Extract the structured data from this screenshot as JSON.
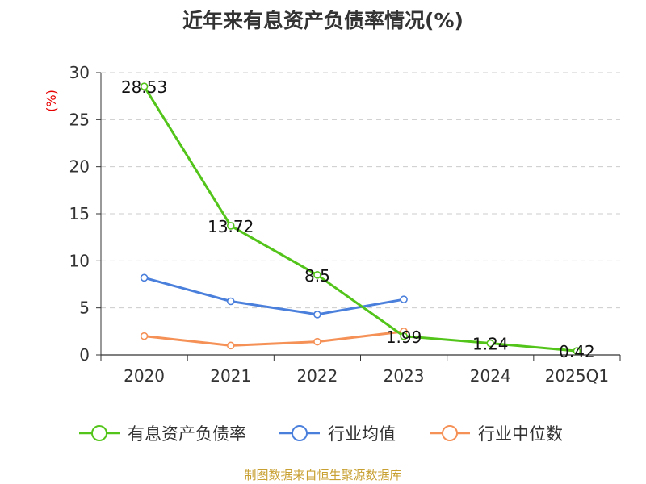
{
  "colors": {
    "series": [
      "#52c41a",
      "#4a7fdc",
      "#f59157"
    ],
    "grid": "#cccccc",
    "axis": "#333333",
    "ylabel": "#e60000",
    "source": "#c8a032"
  },
  "chart_data": {
    "type": "line",
    "title": "近年来有息资产负债率情况(%)",
    "ylabel": "(%)",
    "xlabel": "",
    "categories": [
      "2020",
      "2021",
      "2022",
      "2023",
      "2024",
      "2025Q1"
    ],
    "ylim": [
      0,
      30
    ],
    "yticks": [
      0,
      5,
      10,
      15,
      20,
      25,
      30
    ],
    "grid": true,
    "legend_position": "bottom",
    "series": [
      {
        "name": "有息资产负债率",
        "values": [
          28.53,
          13.72,
          8.5,
          1.99,
          1.24,
          0.42
        ],
        "labels": [
          "28.53",
          "13.72",
          "8.5",
          "1.99",
          "1.24",
          "0.42"
        ]
      },
      {
        "name": "行业均值",
        "values": [
          8.2,
          5.7,
          4.3,
          5.9,
          null,
          null
        ]
      },
      {
        "name": "行业中位数",
        "values": [
          2.0,
          1.0,
          1.4,
          2.5,
          null,
          null
        ]
      }
    ]
  },
  "source": "制图数据来自恒生聚源数据库"
}
